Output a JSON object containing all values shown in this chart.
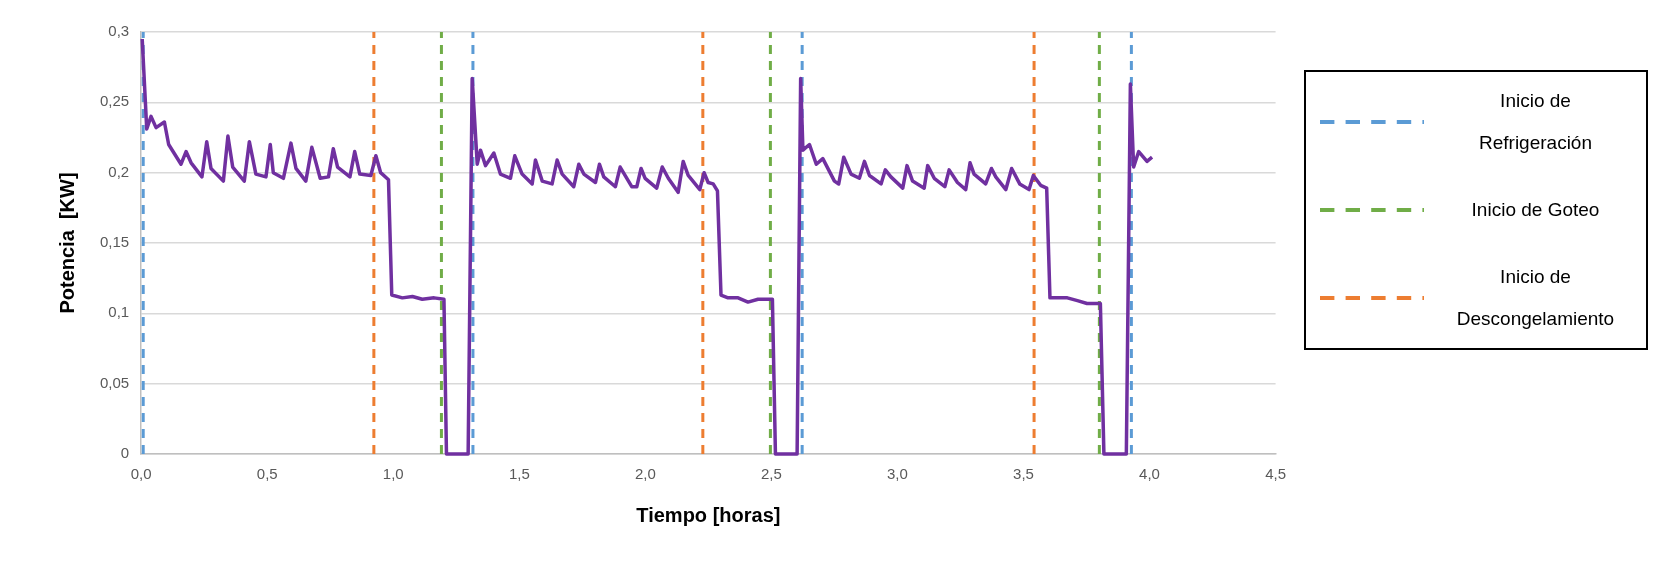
{
  "chart_data": {
    "type": "line",
    "xlabel": "Tiempo [horas]",
    "ylabel": "Potencia  [KW]",
    "xlim": [
      0,
      4.5
    ],
    "ylim": [
      0,
      0.3
    ],
    "xticks": [
      {
        "value": 0,
        "label": "0,0"
      },
      {
        "value": 0.5,
        "label": "0,5"
      },
      {
        "value": 1,
        "label": "1,0"
      },
      {
        "value": 1.5,
        "label": "1,5"
      },
      {
        "value": 2,
        "label": "2,0"
      },
      {
        "value": 2.5,
        "label": "2,5"
      },
      {
        "value": 3,
        "label": "3,0"
      },
      {
        "value": 3.5,
        "label": "3,5"
      },
      {
        "value": 4,
        "label": "4,0"
      },
      {
        "value": 4.5,
        "label": "4,5"
      }
    ],
    "yticks": [
      0,
      {
        "value": 0.05,
        "label": "0,05"
      },
      {
        "value": 0.1,
        "label": "0,1"
      },
      {
        "value": 0.15,
        "label": "0,15"
      },
      {
        "value": 0.2,
        "label": "0,2"
      },
      {
        "value": 0.25,
        "label": "0,25"
      },
      {
        "value": 0.3,
        "label": "0,3"
      }
    ],
    "grid": "y",
    "legend": "right",
    "marker": "none",
    "series": [
      {
        "color": "#7030a0",
        "line_style": "solid",
        "x": [
          0.004,
          0.022,
          0.039,
          0.059,
          0.092,
          0.109,
          0.158,
          0.178,
          0.198,
          0.241,
          0.26,
          0.277,
          0.326,
          0.344,
          0.363,
          0.409,
          0.429,
          0.455,
          0.495,
          0.512,
          0.524,
          0.564,
          0.594,
          0.614,
          0.653,
          0.677,
          0.71,
          0.743,
          0.762,
          0.779,
          0.828,
          0.847,
          0.867,
          0.911,
          0.931,
          0.95,
          0.981,
          0.994,
          1.036,
          1.076,
          1.115,
          1.162,
          1.201,
          1.211,
          1.297,
          1.313,
          1.333,
          1.346,
          1.366,
          1.399,
          1.425,
          1.465,
          1.482,
          1.511,
          1.551,
          1.564,
          1.591,
          1.63,
          1.65,
          1.67,
          1.716,
          1.736,
          1.756,
          1.802,
          1.818,
          1.835,
          1.881,
          1.9,
          1.946,
          1.966,
          1.983,
          1.999,
          2.045,
          2.067,
          2.091,
          2.13,
          2.15,
          2.17,
          2.216,
          2.233,
          2.249,
          2.269,
          2.286,
          2.3,
          2.328,
          2.368,
          2.407,
          2.447,
          2.504,
          2.516,
          2.602,
          2.616,
          2.625,
          2.651,
          2.678,
          2.704,
          2.75,
          2.767,
          2.787,
          2.816,
          2.849,
          2.869,
          2.889,
          2.935,
          2.952,
          2.974,
          3.021,
          3.038,
          3.06,
          3.106,
          3.12,
          3.146,
          3.188,
          3.205,
          3.238,
          3.271,
          3.288,
          3.304,
          3.35,
          3.373,
          3.39,
          3.43,
          3.453,
          3.485,
          3.522,
          3.539,
          3.568,
          3.592,
          3.605,
          3.674,
          3.714,
          3.752,
          3.805,
          3.819,
          3.908,
          3.924,
          3.937,
          3.957,
          3.99,
          4.01
        ],
        "values": [
          0.295,
          0.231,
          0.24,
          0.232,
          0.236,
          0.22,
          0.206,
          0.215,
          0.207,
          0.197,
          0.222,
          0.203,
          0.194,
          0.226,
          0.204,
          0.194,
          0.222,
          0.199,
          0.197,
          0.22,
          0.2,
          0.196,
          0.221,
          0.203,
          0.194,
          0.218,
          0.196,
          0.197,
          0.217,
          0.204,
          0.197,
          0.215,
          0.199,
          0.198,
          0.212,
          0.2,
          0.195,
          0.113,
          0.111,
          0.112,
          0.11,
          0.111,
          0.11,
          0,
          0,
          0.267,
          0.206,
          0.216,
          0.205,
          0.214,
          0.199,
          0.196,
          0.212,
          0.199,
          0.192,
          0.209,
          0.194,
          0.192,
          0.209,
          0.199,
          0.19,
          0.206,
          0.199,
          0.193,
          0.206,
          0.197,
          0.19,
          0.204,
          0.19,
          0.19,
          0.203,
          0.196,
          0.189,
          0.204,
          0.196,
          0.186,
          0.208,
          0.198,
          0.188,
          0.2,
          0.193,
          0.192,
          0.187,
          0.113,
          0.111,
          0.111,
          0.108,
          0.11,
          0.11,
          0,
          0,
          0.267,
          0.216,
          0.22,
          0.206,
          0.21,
          0.194,
          0.192,
          0.211,
          0.199,
          0.196,
          0.208,
          0.198,
          0.192,
          0.202,
          0.197,
          0.189,
          0.205,
          0.194,
          0.189,
          0.205,
          0.196,
          0.19,
          0.202,
          0.193,
          0.188,
          0.207,
          0.199,
          0.192,
          0.203,
          0.197,
          0.188,
          0.203,
          0.192,
          0.188,
          0.198,
          0.191,
          0.189,
          0.111,
          0.111,
          0.109,
          0.107,
          0.107,
          0,
          0,
          0.263,
          0.204,
          0.215,
          0.208,
          0.211
        ]
      },
      {
        "name": "Inicio de Refrigeración",
        "color": "#5b9bd5",
        "line_style": "dashed",
        "x": [
          0.008,
          0.008,
          null,
          1.316,
          1.316,
          null,
          2.622,
          2.622,
          null,
          3.928,
          3.928
        ],
        "values": [
          0,
          0.3,
          null,
          0,
          0.3,
          null,
          0,
          0.3,
          null,
          0,
          0.3
        ]
      },
      {
        "name": "Inicio de Goteo",
        "color": "#70ad47",
        "line_style": "dashed",
        "x": [
          1.191,
          1.191,
          null,
          2.496,
          2.496,
          null,
          3.801,
          3.801
        ],
        "values": [
          0,
          0.3,
          null,
          0,
          0.3,
          null,
          0,
          0.3
        ]
      },
      {
        "name": "Inicio de Descongelamiento",
        "color": "#ed7d31",
        "line_style": "dashed",
        "x": [
          0.923,
          0.923,
          null,
          2.228,
          2.228,
          null,
          3.542,
          3.542
        ],
        "values": [
          0,
          0.3,
          null,
          0,
          0.3,
          null,
          0,
          0.3
        ]
      }
    ]
  }
}
